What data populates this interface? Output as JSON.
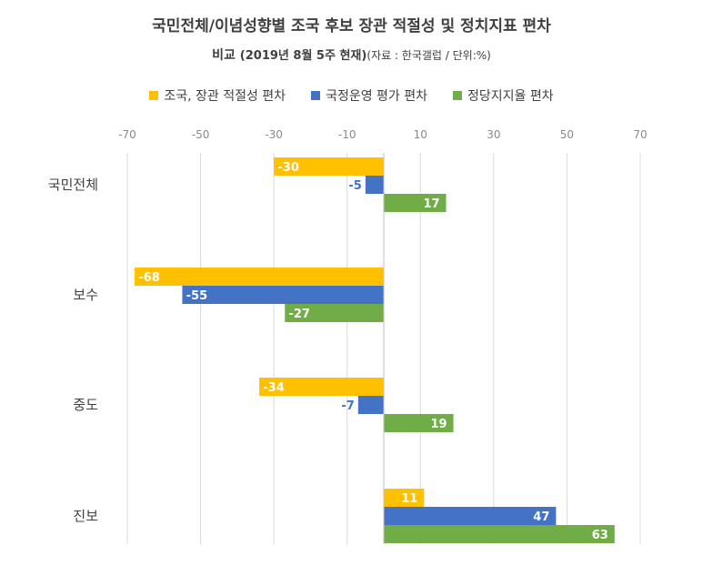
{
  "chart_data": {
    "type": "bar",
    "orientation": "horizontal",
    "title": "국민전체/이념성향별  조국 후보 장관 적절성 및 정치지표 편차",
    "subtitle_main": "비교",
    "subtitle_date": "(2019년 8월 5주 현재)",
    "subtitle_source": "(자료 : 한국갤럽 / 단위:%)",
    "categories": [
      "국민전체",
      "보수",
      "중도",
      "진보"
    ],
    "xlim": [
      -70,
      70
    ],
    "xticks": [
      "-70",
      "-50",
      "-30",
      "-10",
      "10",
      "30",
      "50",
      "70"
    ],
    "grid": "vertical",
    "legend_position": "top",
    "series": [
      {
        "name": "조국, 장관 적절성 편차",
        "color": "#FFC000",
        "label_color": "#ffffff",
        "values": [
          -30,
          -68,
          -34,
          11
        ]
      },
      {
        "name": "국정운영 평가 편차",
        "color": "#4472C4",
        "label_color": "#4472C4",
        "values": [
          -5,
          -55,
          -7,
          47
        ]
      },
      {
        "name": "정당지지율 편차",
        "color": "#70AD47",
        "label_color": "#ffffff",
        "values": [
          17,
          -27,
          19,
          63
        ]
      }
    ]
  }
}
